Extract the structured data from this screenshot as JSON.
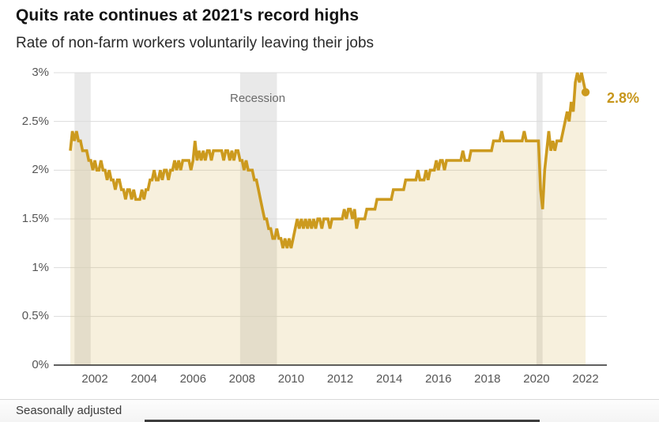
{
  "header": {
    "title": "Quits rate continues at 2021's record highs",
    "subtitle": "Rate of non-farm workers voluntarily leaving their jobs"
  },
  "footer": {
    "note": "Seasonally adjusted"
  },
  "chart_data": {
    "type": "line",
    "title": "Quits rate continues at 2021's record highs",
    "subtitle": "Rate of non-farm workers voluntarily leaving their jobs",
    "unit": "%",
    "ylim": [
      0,
      3
    ],
    "grid": true,
    "annotation": "Recession",
    "end_label": "2.8%",
    "end_value": 2.8,
    "x_ticks": [
      "2002",
      "2004",
      "2006",
      "2008",
      "2010",
      "2012",
      "2014",
      "2016",
      "2018",
      "2020",
      "2022"
    ],
    "y_ticks": [
      {
        "value": 0,
        "label": "0%"
      },
      {
        "value": 0.5,
        "label": "0.5%"
      },
      {
        "value": 1,
        "label": "1%"
      },
      {
        "value": 1.5,
        "label": "1.5%"
      },
      {
        "value": 2,
        "label": "2%"
      },
      {
        "value": 2.5,
        "label": "2.5%"
      },
      {
        "value": 3,
        "label": "3%"
      }
    ],
    "recessions": [
      {
        "start": 2001.17,
        "end": 2001.83
      },
      {
        "start": 2007.92,
        "end": 2009.42
      },
      {
        "start": 2020.0,
        "end": 2020.25
      }
    ],
    "series": [
      {
        "name": "Quits rate",
        "start_year": 2001,
        "points_per_year": 12,
        "values": [
          2.2,
          2.4,
          2.3,
          2.4,
          2.3,
          2.3,
          2.2,
          2.2,
          2.2,
          2.1,
          2.1,
          2.0,
          2.1,
          2.0,
          2.0,
          2.1,
          2.0,
          2.0,
          1.9,
          2.0,
          1.9,
          1.9,
          1.8,
          1.9,
          1.9,
          1.8,
          1.8,
          1.7,
          1.8,
          1.8,
          1.7,
          1.8,
          1.7,
          1.7,
          1.7,
          1.8,
          1.7,
          1.8,
          1.8,
          1.9,
          1.9,
          2.0,
          1.9,
          1.9,
          2.0,
          1.9,
          2.0,
          2.0,
          1.9,
          2.0,
          2.0,
          2.1,
          2.0,
          2.1,
          2.0,
          2.1,
          2.1,
          2.1,
          2.1,
          2.0,
          2.1,
          2.3,
          2.1,
          2.2,
          2.1,
          2.2,
          2.1,
          2.2,
          2.2,
          2.1,
          2.2,
          2.2,
          2.2,
          2.2,
          2.2,
          2.1,
          2.2,
          2.2,
          2.1,
          2.2,
          2.1,
          2.2,
          2.2,
          2.1,
          2.1,
          2.0,
          2.1,
          2.0,
          2.0,
          2.0,
          1.9,
          1.9,
          1.8,
          1.7,
          1.6,
          1.5,
          1.5,
          1.4,
          1.4,
          1.3,
          1.3,
          1.4,
          1.3,
          1.3,
          1.2,
          1.3,
          1.2,
          1.3,
          1.2,
          1.3,
          1.4,
          1.5,
          1.4,
          1.5,
          1.4,
          1.5,
          1.4,
          1.5,
          1.4,
          1.5,
          1.4,
          1.5,
          1.5,
          1.4,
          1.5,
          1.5,
          1.5,
          1.4,
          1.5,
          1.5,
          1.5,
          1.5,
          1.5,
          1.5,
          1.6,
          1.5,
          1.6,
          1.6,
          1.5,
          1.6,
          1.4,
          1.5,
          1.5,
          1.5,
          1.5,
          1.6,
          1.6,
          1.6,
          1.6,
          1.6,
          1.7,
          1.7,
          1.7,
          1.7,
          1.7,
          1.7,
          1.7,
          1.7,
          1.8,
          1.8,
          1.8,
          1.8,
          1.8,
          1.8,
          1.9,
          1.9,
          1.9,
          1.9,
          1.9,
          1.9,
          2.0,
          1.9,
          1.9,
          1.9,
          2.0,
          1.9,
          2.0,
          2.0,
          2.0,
          2.1,
          2.0,
          2.1,
          2.1,
          2.0,
          2.1,
          2.1,
          2.1,
          2.1,
          2.1,
          2.1,
          2.1,
          2.1,
          2.2,
          2.1,
          2.1,
          2.1,
          2.2,
          2.2,
          2.2,
          2.2,
          2.2,
          2.2,
          2.2,
          2.2,
          2.2,
          2.2,
          2.2,
          2.3,
          2.3,
          2.3,
          2.3,
          2.4,
          2.3,
          2.3,
          2.3,
          2.3,
          2.3,
          2.3,
          2.3,
          2.3,
          2.3,
          2.3,
          2.4,
          2.3,
          2.3,
          2.3,
          2.3,
          2.3,
          2.3,
          2.3,
          1.8,
          1.6,
          2.0,
          2.2,
          2.4,
          2.2,
          2.3,
          2.2,
          2.3,
          2.3,
          2.3,
          2.4,
          2.5,
          2.6,
          2.5,
          2.7,
          2.6,
          2.9,
          3.0,
          2.9,
          3.0,
          2.9,
          2.8
        ]
      }
    ],
    "colors": {
      "line": "#cc9a1e",
      "area": "rgba(204,154,30,0.15)",
      "recession_band": "#e9e9e9",
      "grid": "#dcdcdc",
      "axis": "#2b2b2b",
      "end_label": "#c7961b"
    }
  }
}
